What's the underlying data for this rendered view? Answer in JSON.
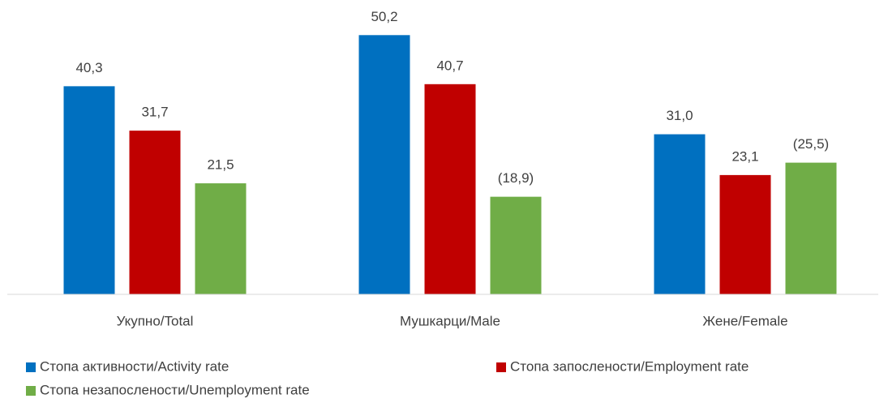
{
  "chart_data": {
    "type": "bar",
    "categories": [
      "Укупно/Total",
      "Мушкарци/Male",
      "Жене/Female"
    ],
    "series": [
      {
        "name": "Стопа активности/Activity rate",
        "color": "#0070c0",
        "values": [
          40.3,
          50.2,
          31.0
        ],
        "value_labels": [
          "40,3",
          "50,2",
          "31,0"
        ]
      },
      {
        "name": "Стопа запослености/Employment rate",
        "color": "#c00000",
        "values": [
          31.7,
          40.7,
          23.1
        ],
        "value_labels": [
          "31,7",
          "40,7",
          "23,1"
        ]
      },
      {
        "name": "Стопа незапослености/Unemployment rate",
        "color": "#70ad47",
        "values": [
          21.5,
          18.9,
          25.5
        ],
        "value_labels": [
          "21,5",
          "(18,9)",
          "(25,5)"
        ]
      }
    ],
    "ylim": [
      0,
      57
    ]
  }
}
